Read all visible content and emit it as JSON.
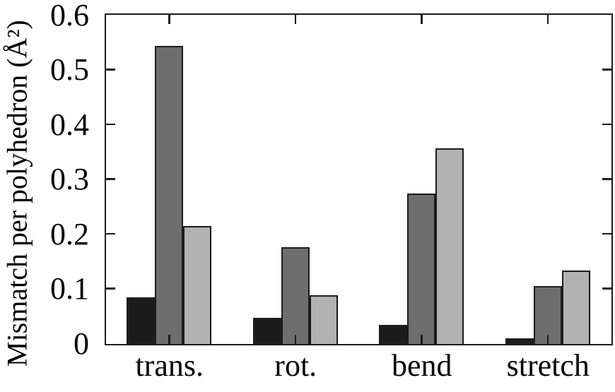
{
  "chart_data": {
    "type": "bar",
    "title": "",
    "xlabel": "",
    "ylabel": "Mismatch per polyhedron (Å²)",
    "categories": [
      "trans.",
      "rot.",
      "bend",
      "stretch"
    ],
    "series": [
      {
        "name": "black-bars",
        "color": "#1c1c1c",
        "values": [
          0.085,
          0.048,
          0.035,
          0.01
        ]
      },
      {
        "name": "dark-gray-bars",
        "color": "#6e6e6e",
        "values": [
          0.545,
          0.177,
          0.275,
          0.106
        ]
      },
      {
        "name": "light-gray-bars",
        "color": "#b2b2b2",
        "values": [
          0.215,
          0.089,
          0.358,
          0.134
        ]
      }
    ],
    "ylim": [
      0,
      0.6
    ],
    "yticks": [
      0,
      0.1,
      0.2,
      0.3,
      0.4,
      0.5,
      0.6
    ],
    "ytick_labels": [
      "0",
      "0.1",
      "0.2",
      "0.3",
      "0.4",
      "0.5",
      "0.6"
    ],
    "grid": false,
    "legend_position": "none",
    "axis_color": "#1c1c1c",
    "bar_outline_color": "#1c1c1c",
    "tick_style": "inward, mirrored on top and right axes"
  }
}
